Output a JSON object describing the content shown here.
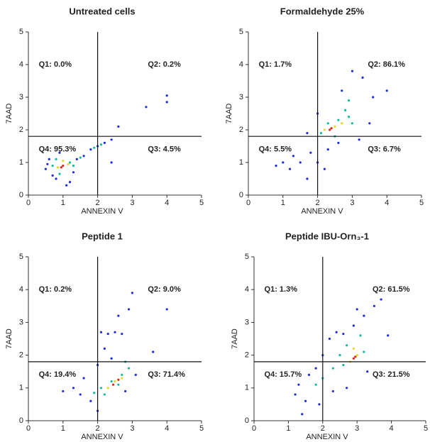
{
  "chart_data": [
    {
      "type": "scatter",
      "title": "Untreated cells",
      "xlabel": "ANNEXIN V",
      "ylabel": "7AAD",
      "xlim": [
        0,
        5
      ],
      "ylim": [
        0,
        5
      ],
      "xticks": [
        0,
        1,
        2,
        3,
        4,
        5
      ],
      "yticks": [
        0,
        1,
        2,
        3,
        4,
        5
      ],
      "gate": {
        "x": 2,
        "y": 1.8
      },
      "quadrant_labels": [
        "Q1: 0.0%",
        "Q2: 0.2%",
        "Q3: 4.5%",
        "Q4: 95.3%"
      ],
      "series": [
        {
          "color": "#1f2bd6",
          "x": [
            0.5,
            0.6,
            0.7,
            0.8,
            0.9,
            1.3,
            1.4,
            1.2,
            0.55,
            1.6,
            1.8,
            2.0,
            2.2,
            2.4,
            2.6,
            3.4,
            4.0,
            4.0,
            2.4,
            1.1
          ],
          "values": [
            0.8,
            1.1,
            0.6,
            0.5,
            1.3,
            0.7,
            1.1,
            0.4,
            0.95,
            1.2,
            1.4,
            1.5,
            1.6,
            1.7,
            2.1,
            2.7,
            3.05,
            2.85,
            1.0,
            0.3
          ]
        },
        {
          "color": "#12b8a0",
          "x": [
            0.7,
            0.8,
            1.2,
            1.3,
            0.9,
            1.5,
            1.9,
            2.1
          ],
          "values": [
            0.9,
            1.1,
            1.0,
            0.9,
            0.65,
            1.15,
            1.45,
            1.55
          ]
        },
        {
          "color": "#e6d81a",
          "x": [
            0.85,
            1.15,
            1.0
          ],
          "values": [
            0.85,
            0.95,
            1.05
          ]
        },
        {
          "color": "#e3221c",
          "x": [
            1.0,
            0.95
          ],
          "values": [
            0.9,
            0.85
          ]
        }
      ]
    },
    {
      "type": "scatter",
      "title": "Formaldehyde 25%",
      "xlabel": "ANNEXIN V",
      "ylabel": "7AAD",
      "xlim": [
        0,
        5
      ],
      "ylim": [
        0,
        5
      ],
      "xticks": [
        0,
        1,
        2,
        3,
        4,
        5
      ],
      "yticks": [
        0,
        1,
        2,
        3,
        4,
        5
      ],
      "gate": {
        "x": 2,
        "y": 1.8
      },
      "quadrant_labels": [
        "Q1: 1.7%",
        "Q2: 86.1%",
        "Q3: 6.7%",
        "Q4: 5.5%"
      ],
      "series": [
        {
          "color": "#1f2bd6",
          "x": [
            0.8,
            1.0,
            1.2,
            1.3,
            1.5,
            1.7,
            1.8,
            2.0,
            2.3,
            2.6,
            3.2,
            3.5,
            3.6,
            3.3,
            3.0,
            2.7,
            2.0,
            1.7,
            4.0,
            2.2
          ],
          "values": [
            0.9,
            1.0,
            0.8,
            1.2,
            1.0,
            0.5,
            1.3,
            1.0,
            1.4,
            1.6,
            1.7,
            2.2,
            3.0,
            3.6,
            3.8,
            3.2,
            2.5,
            1.9,
            3.2,
            0.8
          ]
        },
        {
          "color": "#12b8a0",
          "x": [
            2.8,
            2.9,
            2.6,
            2.1,
            3.0,
            2.5,
            2.9,
            2.3
          ],
          "values": [
            2.6,
            2.9,
            2.3,
            1.9,
            2.2,
            1.8,
            2.4,
            2.2
          ]
        },
        {
          "color": "#e6d81a",
          "x": [
            2.5,
            2.7,
            2.2
          ],
          "values": [
            2.1,
            2.2,
            2.0
          ]
        },
        {
          "color": "#e3221c",
          "x": [
            2.4,
            2.35
          ],
          "values": [
            2.05,
            2.0
          ]
        }
      ]
    },
    {
      "type": "scatter",
      "title": "Peptide 1",
      "xlabel": "ANNEXIN V",
      "ylabel": "7AAD",
      "xlim": [
        0,
        5
      ],
      "ylim": [
        0,
        5
      ],
      "xticks": [
        0,
        1,
        2,
        3,
        4,
        5
      ],
      "yticks": [
        0,
        1,
        2,
        3,
        4,
        5
      ],
      "gate": {
        "x": 2,
        "y": 1.8
      },
      "quadrant_labels": [
        "Q1: 0.2%",
        "Q2: 9.0%",
        "Q3: 71.4%",
        "Q4: 19.4%"
      ],
      "series": [
        {
          "color": "#1f2bd6",
          "x": [
            1.0,
            1.3,
            1.5,
            1.6,
            1.8,
            2.0,
            2.1,
            2.3,
            2.5,
            2.7,
            2.6,
            2.9,
            3.0,
            2.2,
            2.4,
            3.1,
            4.0,
            3.6,
            2.0,
            2.8
          ],
          "values": [
            0.9,
            1.0,
            0.8,
            1.3,
            0.6,
            0.3,
            2.7,
            2.65,
            2.7,
            2.65,
            3.2,
            3.4,
            3.9,
            2.2,
            1.9,
            1.4,
            3.4,
            2.1,
            1.7,
            0.9
          ]
        },
        {
          "color": "#12b8a0",
          "x": [
            1.9,
            2.1,
            2.4,
            2.7,
            2.9,
            2.2,
            2.6,
            2.8
          ],
          "values": [
            0.85,
            1.0,
            1.2,
            1.4,
            1.6,
            0.8,
            1.1,
            1.8
          ]
        },
        {
          "color": "#e6d81a",
          "x": [
            2.3,
            2.5,
            2.7
          ],
          "values": [
            1.0,
            1.2,
            1.3
          ]
        },
        {
          "color": "#e3221c",
          "x": [
            2.45,
            2.6
          ],
          "values": [
            1.1,
            1.25
          ]
        }
      ]
    },
    {
      "type": "scatter",
      "title": "Peptide IBU-Orn₃-1",
      "xlabel": "ANNEXIN V",
      "ylabel": "7AAD",
      "xlim": [
        0,
        5
      ],
      "ylim": [
        0,
        5
      ],
      "xticks": [
        0,
        1,
        2,
        3,
        4,
        5
      ],
      "yticks": [
        0,
        1,
        2,
        3,
        4,
        5
      ],
      "gate": {
        "x": 2,
        "y": 1.8
      },
      "quadrant_labels": [
        "Q1: 1.3%",
        "Q2: 61.5%",
        "Q3: 21.5%",
        "Q4: 15.7%"
      ],
      "series": [
        {
          "color": "#1f2bd6",
          "x": [
            1.2,
            1.3,
            1.5,
            1.6,
            1.8,
            2.0,
            2.2,
            2.4,
            2.6,
            2.9,
            3.2,
            3.5,
            3.7,
            3.9,
            3.3,
            2.7,
            2.3,
            1.9,
            3.0,
            1.4
          ],
          "values": [
            0.8,
            1.1,
            0.6,
            1.4,
            1.6,
            2.0,
            2.5,
            2.7,
            2.65,
            2.9,
            3.2,
            3.5,
            3.7,
            2.6,
            1.5,
            1.0,
            0.9,
            0.5,
            3.4,
            0.2
          ]
        },
        {
          "color": "#12b8a0",
          "x": [
            2.0,
            2.3,
            2.5,
            2.7,
            3.1,
            3.2,
            2.6,
            1.8
          ],
          "values": [
            1.3,
            1.6,
            2.0,
            2.3,
            2.6,
            2.1,
            1.7,
            1.1
          ]
        },
        {
          "color": "#e6d81a",
          "x": [
            2.8,
            3.0,
            2.9
          ],
          "values": [
            1.8,
            2.0,
            2.2
          ]
        },
        {
          "color": "#e3221c",
          "x": [
            2.9,
            2.95
          ],
          "values": [
            1.9,
            1.95
          ]
        }
      ]
    }
  ]
}
